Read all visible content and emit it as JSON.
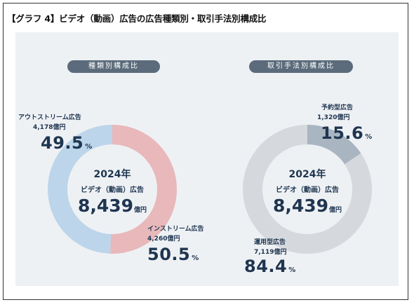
{
  "title": "【グラフ 4】ビデオ（動画）広告の広告種類別・取引手法別構成比",
  "unit_oku": "億円",
  "unit_pct": "%",
  "chart_data": [
    {
      "type": "pie",
      "donut": true,
      "title": "種類別構成比",
      "center": {
        "year": "2024年",
        "label": "ビデオ（動画）広告",
        "total": "8,439"
      },
      "slices": [
        {
          "name": "インストリーム広告",
          "amount": "4,260",
          "value": 50.5,
          "color": "#e8b8bb"
        },
        {
          "name": "アウトストリーム広告",
          "amount": "4,178",
          "value": 49.5,
          "color": "#bcd5ea"
        }
      ]
    },
    {
      "type": "pie",
      "donut": true,
      "title": "取引手法別構成比",
      "center": {
        "year": "2024年",
        "label": "ビデオ（動画）広告",
        "total": "8,439"
      },
      "slices": [
        {
          "name": "予約型広告",
          "amount": "1,320",
          "value": 15.6,
          "color": "#a9b5c1"
        },
        {
          "name": "運用型広告",
          "amount": "7,119",
          "value": 84.4,
          "color": "#d5d9dd"
        }
      ]
    }
  ]
}
